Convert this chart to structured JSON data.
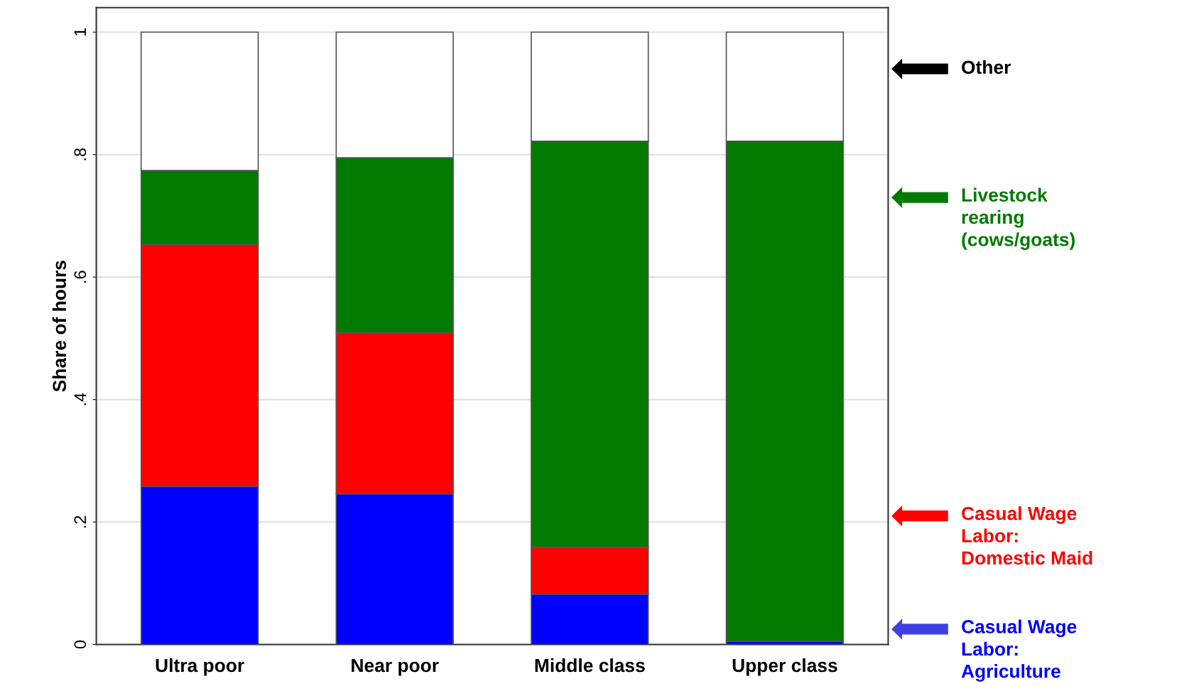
{
  "chart_data": {
    "type": "bar",
    "stacked": true,
    "ylabel": "Share of hours",
    "categories": [
      "Ultra poor",
      "Near poor",
      "Middle class",
      "Upper class"
    ],
    "series": [
      {
        "name": "Casual Wage Labor: Agriculture",
        "color": "#0000ff",
        "values": [
          0.258,
          0.246,
          0.082,
          0.005
        ]
      },
      {
        "name": "Casual Wage Labor: Domestic Maid",
        "color": "#ff0000",
        "values": [
          0.395,
          0.263,
          0.077,
          0
        ]
      },
      {
        "name": "Livestock rearing (cows/goats)",
        "color": "#007a00",
        "values": [
          0.121,
          0.286,
          0.663,
          0.817
        ]
      },
      {
        "color": "#ffffff",
        "values": [
          0.226,
          0.205,
          0.178,
          0.178
        ]
      }
    ],
    "ylim": [
      0,
      1.04
    ],
    "yticks": [
      0,
      {
        "value": 0.2,
        "label": ".2"
      },
      {
        "value": 0.4,
        "label": ".4"
      },
      {
        "value": 0.6,
        "label": ".6"
      },
      {
        "value": 0.8,
        "label": ".8"
      },
      1
    ],
    "grid": "y",
    "legend": "right",
    "annotations": [
      "Other"
    ]
  }
}
